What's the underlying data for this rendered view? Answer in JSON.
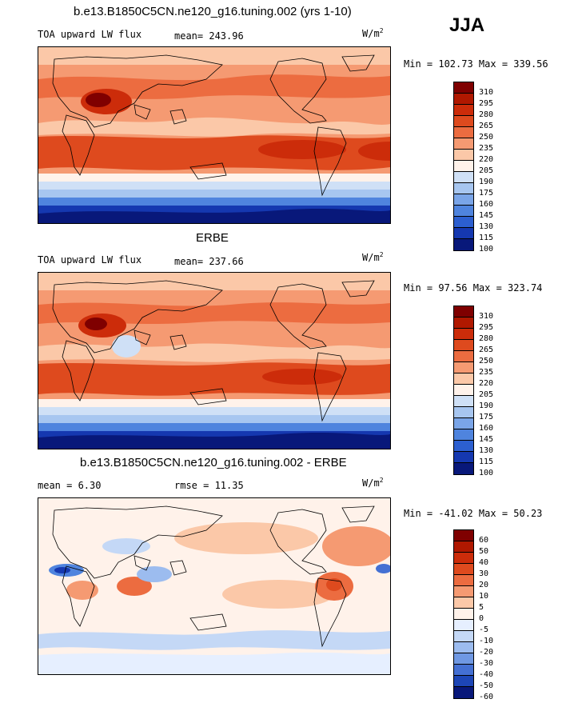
{
  "season": "JJA",
  "panels": [
    {
      "title": "b.e13.B1850C5CN.ne120_g16.tuning.002 (yrs 1-10)",
      "left_label": "TOA upward LW flux",
      "center_label": "mean= 243.96",
      "units": "W/m",
      "units_sup": "2",
      "minmax": "Min = 102.73 Max = 339.56",
      "colorbar_levels": [
        "310",
        "295",
        "280",
        "265",
        "250",
        "235",
        "220",
        "205",
        "190",
        "175",
        "160",
        "145",
        "130",
        "115",
        "100"
      ]
    },
    {
      "title": "ERBE",
      "left_label": "TOA upward LW flux",
      "center_label": "mean= 237.66",
      "units": "W/m",
      "units_sup": "2",
      "minmax": "Min =  97.56 Max = 323.74",
      "colorbar_levels": [
        "310",
        "295",
        "280",
        "265",
        "250",
        "235",
        "220",
        "205",
        "190",
        "175",
        "160",
        "145",
        "130",
        "115",
        "100"
      ]
    },
    {
      "title": "b.e13.B1850C5CN.ne120_g16.tuning.002 - ERBE",
      "left_label": "mean =    6.30",
      "center_label": "rmse =   11.35",
      "units": "W/m",
      "units_sup": "2",
      "minmax": "Min = -41.02 Max =  50.23",
      "colorbar_levels": [
        "60",
        "50",
        "40",
        "30",
        "20",
        "10",
        "5",
        "0",
        "-5",
        "-10",
        "-20",
        "-30",
        "-40",
        "-50",
        "-60"
      ]
    }
  ],
  "colors": {
    "abs_scale": [
      "#7f0000",
      "#b01800",
      "#cc2c0a",
      "#de4a1e",
      "#ec6c40",
      "#f59a72",
      "#fbc8a8",
      "#fff2ea",
      "#cfe0f6",
      "#a7c6f0",
      "#7aa5e8",
      "#4f84de",
      "#2c5fd0",
      "#1538b0",
      "#08187a"
    ],
    "diff_scale": [
      "#7f0000",
      "#b01800",
      "#cc2c0a",
      "#de4a1e",
      "#ec6c40",
      "#f59a72",
      "#fbc8a8",
      "#fff2ea",
      "#e6efff",
      "#c4d8f6",
      "#9cbcef",
      "#6f98e3",
      "#4470d3",
      "#1d46b6",
      "#08187a"
    ]
  }
}
